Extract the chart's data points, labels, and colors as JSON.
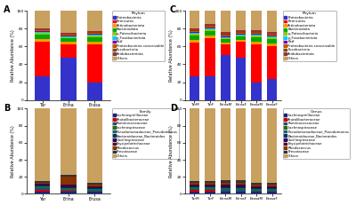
{
  "A_cats": [
    "Tar",
    "Erina",
    "Erasa"
  ],
  "A_data": [
    [
      27,
      47,
      20
    ],
    [
      38,
      15,
      42
    ],
    [
      3,
      3,
      3
    ],
    [
      5,
      4,
      5
    ],
    [
      2,
      1,
      2
    ],
    [
      1,
      1,
      1
    ],
    [
      1,
      1,
      1
    ],
    [
      1,
      1,
      1
    ],
    [
      1,
      1,
      1
    ],
    [
      1,
      1,
      1
    ],
    [
      20,
      26,
      24
    ]
  ],
  "B_cats": [
    "Yar",
    "Erina",
    "Erusa"
  ],
  "B_data": [
    [
      3,
      2,
      2
    ],
    [
      2,
      2,
      1
    ],
    [
      2,
      1,
      1
    ],
    [
      1,
      1,
      1
    ],
    [
      1,
      1,
      1
    ],
    [
      1,
      1,
      1
    ],
    [
      1,
      2,
      1
    ],
    [
      1,
      1,
      1
    ],
    [
      1,
      9,
      2
    ],
    [
      2,
      2,
      2
    ],
    [
      85,
      78,
      87
    ]
  ],
  "C_cats": [
    "TarM",
    "TarF",
    "ErinaM",
    "ErinaF",
    "ErasaM",
    "ErasaF"
  ],
  "C_data": [
    [
      27,
      27,
      50,
      47,
      20,
      24
    ],
    [
      37,
      42,
      12,
      18,
      42,
      36
    ],
    [
      3,
      3,
      2,
      2,
      3,
      3
    ],
    [
      5,
      5,
      4,
      4,
      5,
      5
    ],
    [
      2,
      2,
      1,
      1,
      2,
      2
    ],
    [
      1,
      1,
      1,
      1,
      1,
      1
    ],
    [
      1,
      1,
      1,
      1,
      1,
      1
    ],
    [
      1,
      1,
      1,
      1,
      1,
      1
    ],
    [
      1,
      1,
      1,
      1,
      1,
      1
    ],
    [
      2,
      2,
      3,
      2,
      2,
      2
    ],
    [
      20,
      15,
      24,
      22,
      22,
      24
    ]
  ],
  "D_cats": [
    "TarM",
    "TarF",
    "ErinaM",
    "ErinaF",
    "ErasaM",
    "ErasaF"
  ],
  "D_data": [
    [
      3,
      3,
      2,
      2,
      2,
      2
    ],
    [
      2,
      2,
      1,
      1,
      1,
      1
    ],
    [
      1,
      1,
      2,
      2,
      1,
      1
    ],
    [
      1,
      1,
      1,
      1,
      1,
      1
    ],
    [
      1,
      1,
      1,
      1,
      1,
      1
    ],
    [
      1,
      1,
      1,
      1,
      1,
      1
    ],
    [
      1,
      1,
      2,
      2,
      1,
      1
    ],
    [
      1,
      1,
      1,
      1,
      1,
      1
    ],
    [
      2,
      2,
      2,
      2,
      2,
      2
    ],
    [
      2,
      2,
      3,
      3,
      2,
      2
    ],
    [
      85,
      85,
      84,
      84,
      87,
      87
    ]
  ],
  "phylum_colors": [
    "#3333cc",
    "#ff0000",
    "#ff9900",
    "#00aa00",
    "#88cc00",
    "#00ccff",
    "#7700aa",
    "#cc5500",
    "#884400",
    "#993333",
    "#c8a060"
  ],
  "phylum_labels": [
    "Proteobacteria",
    "Firmicutes",
    "Actinobacteriota",
    "Bacteroidota",
    "p_Patescibacteria",
    "p_Fusobacteriota",
    "Patf",
    "Proteobacteria conceivable",
    "Fusobacteria",
    "Acidobacteriota",
    "Others"
  ],
  "family_colors": [
    "#1a237e",
    "#cc0000",
    "#1a4f7a",
    "#336600",
    "#006688",
    "#003355",
    "#330055",
    "#550022",
    "#883300",
    "#333333",
    "#c8a060"
  ],
  "family_labels": [
    "Lachnospirillaceae",
    "Acutalibacteraceae",
    "Ruminococcaceae",
    "Lachnospiraceae",
    "Pseudomonadaceae_Pseudomonas",
    "Bacteroidaceae_Bacteroides",
    "Oscillospiraceae",
    "Erysipelotrichaceae",
    "Rhodococcus",
    "Prevotaceae",
    "Others"
  ],
  "genus_labels": [
    "Lachnospirillaceae",
    "Acutalibacteraceae",
    "Ruminococcaceae",
    "Lachnospiraceae",
    "Pseudomonadaceae_Pseudomonas",
    "Bacteroidaceae_Bacteroides",
    "Oscillospiraceae",
    "Erysipelotrichaceae",
    "Rhodococcus",
    "Prevotaceae",
    "Others"
  ]
}
